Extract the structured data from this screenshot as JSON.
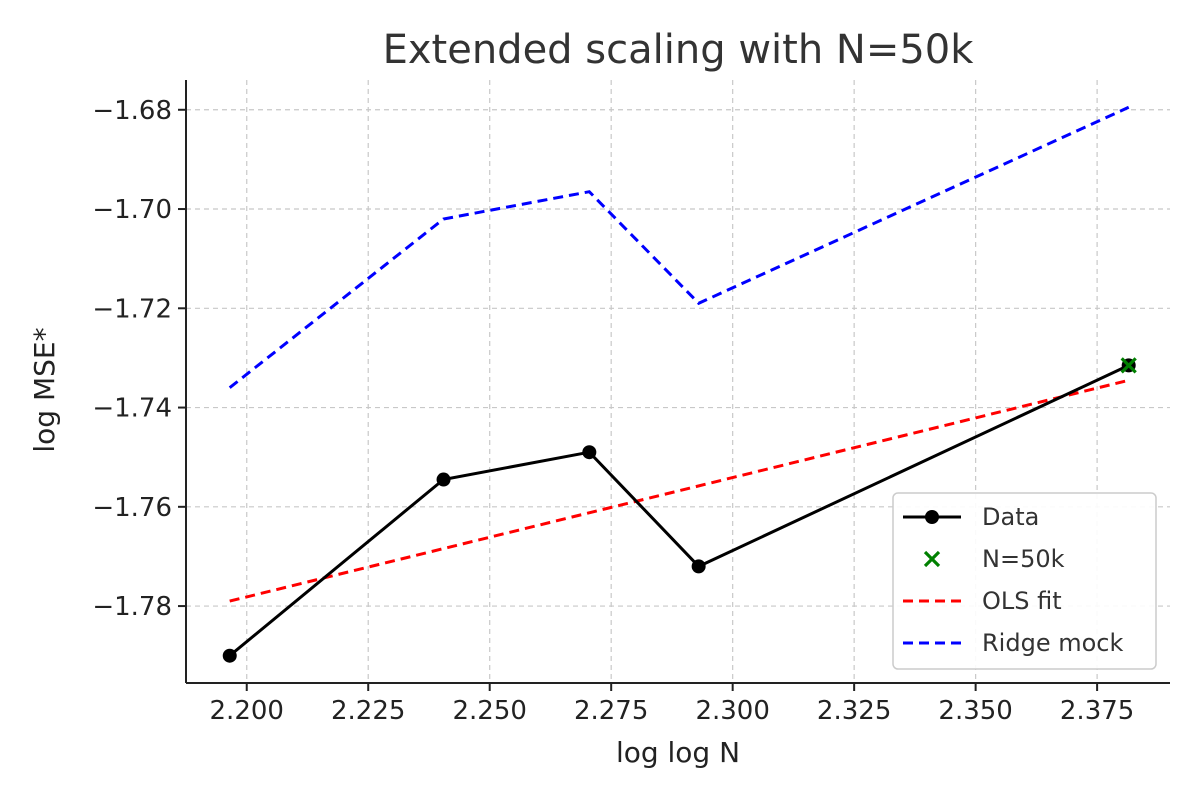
{
  "chart_data": {
    "type": "line",
    "title": "Extended scaling with N=50k",
    "xlabel": "log log N",
    "ylabel": "log MSE*",
    "xlim": [
      2.1875,
      2.39
    ],
    "ylim": [
      -1.7955,
      -1.674
    ],
    "x_ticks": [
      {
        "value": 2.2,
        "label": "2.200"
      },
      {
        "value": 2.225,
        "label": "2.225"
      },
      {
        "value": 2.25,
        "label": "2.250"
      },
      {
        "value": 2.275,
        "label": "2.275"
      },
      {
        "value": 2.3,
        "label": "2.300"
      },
      {
        "value": 2.325,
        "label": "2.325"
      },
      {
        "value": 2.35,
        "label": "2.350"
      },
      {
        "value": 2.375,
        "label": "2.375"
      }
    ],
    "y_ticks": [
      {
        "value": -1.68,
        "label": "−1.68"
      },
      {
        "value": -1.7,
        "label": "−1.70"
      },
      {
        "value": -1.72,
        "label": "−1.72"
      },
      {
        "value": -1.74,
        "label": "−1.74"
      },
      {
        "value": -1.76,
        "label": "−1.76"
      },
      {
        "value": -1.78,
        "label": "−1.78"
      }
    ],
    "grid": true,
    "legend_position": "lower-right",
    "series": [
      {
        "name": "Data",
        "style": "solid-marker",
        "color": "#000000",
        "x": [
          2.1965,
          2.2405,
          2.2705,
          2.293,
          2.3815
        ],
        "y": [
          -1.79,
          -1.7545,
          -1.749,
          -1.772,
          -1.7315
        ]
      },
      {
        "name": "N=50k",
        "style": "x-marker",
        "color": "#008000",
        "x": [
          2.3815
        ],
        "y": [
          -1.7315
        ]
      },
      {
        "name": "OLS fit",
        "style": "dashed",
        "color": "#ff0000",
        "x": [
          2.1965,
          2.3815
        ],
        "y": [
          -1.779,
          -1.7345
        ]
      },
      {
        "name": "Ridge mock",
        "style": "dashed",
        "color": "#0000ff",
        "x": [
          2.1965,
          2.2405,
          2.2705,
          2.293,
          2.3815
        ],
        "y": [
          -1.736,
          -1.702,
          -1.6965,
          -1.719,
          -1.6795
        ]
      }
    ]
  }
}
